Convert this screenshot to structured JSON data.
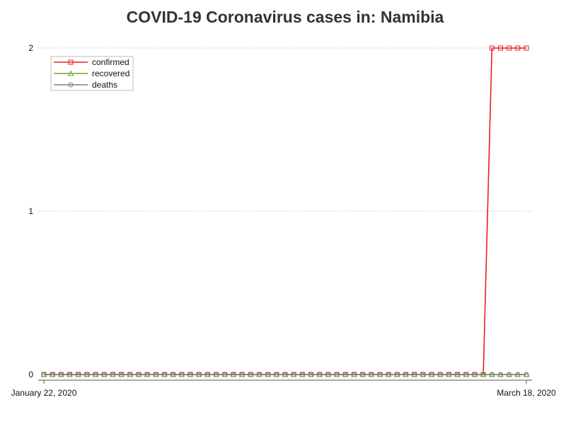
{
  "chart_data": {
    "type": "line",
    "title": "COVID-19 Coronavirus cases in: Namibia",
    "xlabel": "",
    "ylabel": "",
    "x_start_label": "January 22, 2020",
    "x_end_label": "March 18, 2020",
    "x_tick_labels": [
      "January 22, 2020",
      "March 18, 2020"
    ],
    "num_days": 57,
    "y_ticks": [
      0,
      1,
      2
    ],
    "ylim": [
      0,
      2
    ],
    "grid": true,
    "legend_position": "top-left",
    "series": [
      {
        "name": "confirmed",
        "color": "#e8201e",
        "marker": "square",
        "values": [
          0,
          0,
          0,
          0,
          0,
          0,
          0,
          0,
          0,
          0,
          0,
          0,
          0,
          0,
          0,
          0,
          0,
          0,
          0,
          0,
          0,
          0,
          0,
          0,
          0,
          0,
          0,
          0,
          0,
          0,
          0,
          0,
          0,
          0,
          0,
          0,
          0,
          0,
          0,
          0,
          0,
          0,
          0,
          0,
          0,
          0,
          0,
          0,
          0,
          0,
          0,
          0,
          2,
          2,
          2,
          2,
          2
        ]
      },
      {
        "name": "recovered",
        "color": "#6aa82c",
        "marker": "triangle",
        "values": [
          0,
          0,
          0,
          0,
          0,
          0,
          0,
          0,
          0,
          0,
          0,
          0,
          0,
          0,
          0,
          0,
          0,
          0,
          0,
          0,
          0,
          0,
          0,
          0,
          0,
          0,
          0,
          0,
          0,
          0,
          0,
          0,
          0,
          0,
          0,
          0,
          0,
          0,
          0,
          0,
          0,
          0,
          0,
          0,
          0,
          0,
          0,
          0,
          0,
          0,
          0,
          0,
          0,
          0,
          0,
          0,
          0
        ]
      },
      {
        "name": "deaths",
        "color": "#808080",
        "marker": "circle",
        "values": [
          0,
          0,
          0,
          0,
          0,
          0,
          0,
          0,
          0,
          0,
          0,
          0,
          0,
          0,
          0,
          0,
          0,
          0,
          0,
          0,
          0,
          0,
          0,
          0,
          0,
          0,
          0,
          0,
          0,
          0,
          0,
          0,
          0,
          0,
          0,
          0,
          0,
          0,
          0,
          0,
          0,
          0,
          0,
          0,
          0,
          0,
          0,
          0,
          0,
          0,
          0,
          0,
          0,
          0,
          0,
          0,
          0
        ]
      }
    ]
  }
}
